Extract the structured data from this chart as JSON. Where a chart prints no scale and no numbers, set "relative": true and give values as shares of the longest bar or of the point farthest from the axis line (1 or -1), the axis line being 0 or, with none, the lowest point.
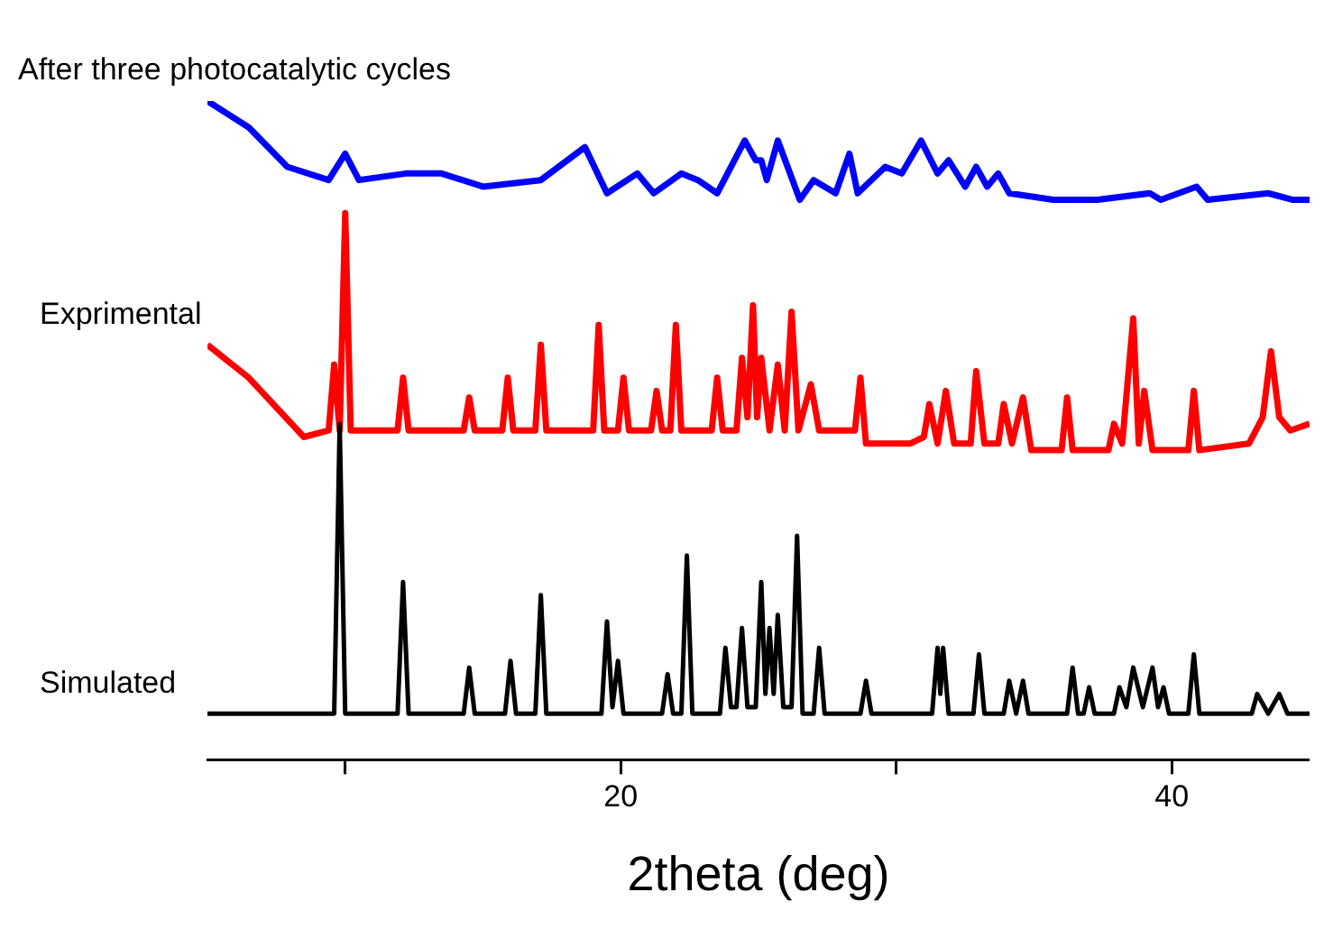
{
  "chart_data": {
    "type": "line",
    "xlabel": "2theta (deg)",
    "relative": true,
    "xlim": [
      5,
      45
    ],
    "xticks": [
      {
        "value": 10,
        "label": null
      },
      20,
      {
        "value": 30,
        "label": null
      },
      40
    ],
    "grid": false,
    "legend": false,
    "marker": "none",
    "line_style": "solid",
    "series": [
      {
        "name": "After three photocatalytic cycles",
        "color": "#0000ff",
        "x": [
          5,
          6.5,
          7.9,
          9.4,
          10.0,
          10.5,
          12.2,
          13.5,
          15.0,
          17.1,
          18.7,
          19.5,
          20.6,
          21.2,
          22.2,
          22.8,
          23.5,
          24.5,
          24.9,
          25.1,
          25.3,
          25.7,
          26.5,
          27.0,
          27.8,
          28.3,
          28.6,
          29.6,
          30.2,
          30.9,
          31.5,
          31.9,
          32.5,
          32.9,
          33.3,
          33.7,
          34.1,
          35.7,
          37.3,
          39.2,
          39.6,
          40.9,
          41.3,
          43.5,
          44.4,
          45
        ],
        "values": [
          1,
          0.96,
          0.9,
          0.88,
          0.92,
          0.88,
          0.89,
          0.89,
          0.87,
          0.88,
          0.93,
          0.86,
          0.89,
          0.86,
          0.89,
          0.88,
          0.86,
          0.94,
          0.91,
          0.91,
          0.88,
          0.94,
          0.85,
          0.88,
          0.86,
          0.92,
          0.86,
          0.9,
          0.89,
          0.94,
          0.89,
          0.91,
          0.87,
          0.9,
          0.87,
          0.89,
          0.86,
          0.85,
          0.85,
          0.86,
          0.85,
          0.87,
          0.85,
          0.86,
          0.85,
          0.85
        ]
      },
      {
        "name": "Exprimental",
        "color": "#ff0000",
        "x": [
          5,
          6.5,
          8.5,
          9.4,
          9.6,
          9.8,
          10.0,
          10.2,
          11.9,
          12.1,
          12.3,
          14.3,
          14.5,
          14.7,
          15.7,
          15.9,
          16.1,
          16.9,
          17.1,
          17.3,
          19.0,
          19.2,
          19.4,
          19.9,
          20.1,
          20.3,
          21.1,
          21.3,
          21.5,
          21.8,
          22.0,
          22.2,
          23.3,
          23.5,
          23.7,
          24.2,
          24.4,
          24.6,
          24.8,
          24.95,
          25.1,
          25.4,
          25.7,
          25.95,
          26.2,
          26.45,
          26.9,
          27.2,
          28.5,
          28.7,
          28.9,
          30.5,
          31.0,
          31.2,
          31.5,
          31.8,
          32.1,
          32.7,
          32.9,
          33.2,
          33.7,
          33.9,
          34.2,
          34.6,
          34.9,
          36.0,
          36.2,
          36.4,
          37.7,
          37.9,
          38.2,
          38.6,
          38.8,
          39.0,
          39.3,
          40.6,
          40.8,
          41.0,
          42.8,
          43.3,
          43.6,
          43.9,
          44.3,
          45
        ],
        "values": [
          0.63,
          0.58,
          0.49,
          0.5,
          0.6,
          0.5,
          0.83,
          0.5,
          0.5,
          0.58,
          0.5,
          0.5,
          0.55,
          0.5,
          0.5,
          0.58,
          0.5,
          0.5,
          0.63,
          0.5,
          0.5,
          0.66,
          0.5,
          0.5,
          0.58,
          0.5,
          0.5,
          0.56,
          0.5,
          0.5,
          0.66,
          0.5,
          0.5,
          0.58,
          0.5,
          0.5,
          0.61,
          0.52,
          0.69,
          0.52,
          0.61,
          0.5,
          0.6,
          0.5,
          0.68,
          0.5,
          0.57,
          0.5,
          0.5,
          0.58,
          0.48,
          0.48,
          0.49,
          0.54,
          0.48,
          0.56,
          0.48,
          0.48,
          0.59,
          0.48,
          0.48,
          0.54,
          0.48,
          0.55,
          0.47,
          0.47,
          0.55,
          0.47,
          0.47,
          0.51,
          0.48,
          0.67,
          0.48,
          0.56,
          0.47,
          0.47,
          0.56,
          0.47,
          0.48,
          0.52,
          0.62,
          0.52,
          0.5,
          0.51
        ]
      },
      {
        "name": "Simulated",
        "color": "#000000",
        "x": [
          5,
          9.6,
          9.8,
          10.0,
          11.9,
          12.1,
          12.3,
          14.3,
          14.5,
          14.7,
          15.8,
          16.0,
          16.2,
          16.9,
          17.1,
          17.3,
          19.3,
          19.5,
          19.7,
          19.9,
          20.1,
          21.5,
          21.7,
          21.9,
          22.2,
          22.4,
          22.6,
          23.6,
          23.8,
          24.0,
          24.2,
          24.4,
          24.6,
          24.9,
          25.1,
          25.25,
          25.4,
          25.55,
          25.7,
          25.9,
          26.2,
          26.4,
          26.6,
          27.0,
          27.2,
          27.4,
          28.7,
          28.9,
          29.1,
          31.3,
          31.5,
          31.6,
          31.7,
          31.9,
          32.8,
          33.0,
          33.2,
          33.9,
          34.1,
          34.35,
          34.6,
          34.8,
          36.2,
          36.4,
          36.6,
          36.8,
          37.0,
          37.2,
          37.9,
          38.1,
          38.35,
          38.6,
          38.95,
          39.3,
          39.5,
          39.7,
          39.9,
          40.6,
          40.8,
          41.0,
          42.9,
          43.1,
          43.5,
          43.9,
          44.2,
          45
        ],
        "values": [
          0.07,
          0.07,
          0.51,
          0.07,
          0.07,
          0.27,
          0.07,
          0.07,
          0.14,
          0.07,
          0.07,
          0.15,
          0.07,
          0.07,
          0.25,
          0.07,
          0.07,
          0.21,
          0.08,
          0.15,
          0.07,
          0.07,
          0.13,
          0.07,
          0.07,
          0.31,
          0.07,
          0.07,
          0.17,
          0.08,
          0.08,
          0.2,
          0.08,
          0.08,
          0.27,
          0.1,
          0.2,
          0.1,
          0.22,
          0.08,
          0.08,
          0.34,
          0.07,
          0.07,
          0.17,
          0.07,
          0.07,
          0.12,
          0.07,
          0.07,
          0.17,
          0.1,
          0.17,
          0.07,
          0.07,
          0.16,
          0.07,
          0.07,
          0.12,
          0.07,
          0.12,
          0.07,
          0.07,
          0.14,
          0.07,
          0.07,
          0.11,
          0.07,
          0.07,
          0.11,
          0.08,
          0.14,
          0.08,
          0.14,
          0.08,
          0.11,
          0.07,
          0.07,
          0.16,
          0.07,
          0.07,
          0.1,
          0.07,
          0.1,
          0.07,
          0.07
        ]
      }
    ]
  }
}
